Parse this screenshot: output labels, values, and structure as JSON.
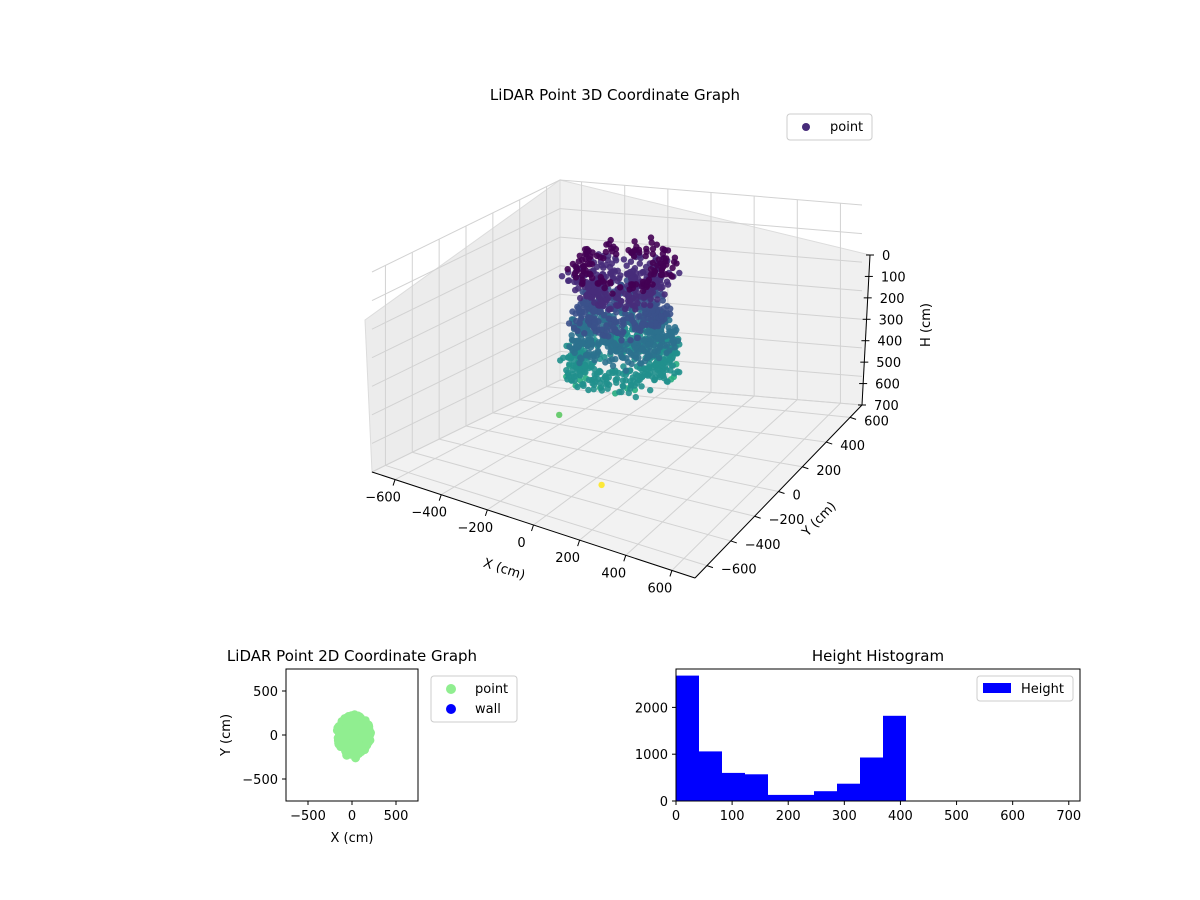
{
  "chart_data": [
    {
      "type": "scatter3d",
      "title": "LiDAR Point 3D Coordinate Graph",
      "xlabel": "X (cm)",
      "ylabel": "Y (cm)",
      "zlabel": "H (cm)",
      "xlim": [
        -700,
        700
      ],
      "ylim": [
        -700,
        700
      ],
      "zlim": [
        0,
        700
      ],
      "z_inverted": true,
      "xticks": [
        "−600",
        "−400",
        "−200",
        "0",
        "200",
        "400",
        "600"
      ],
      "yticks": [
        "−600",
        "−400",
        "−200",
        "0",
        "200",
        "400",
        "600"
      ],
      "zticks": [
        "0",
        "100",
        "200",
        "300",
        "400",
        "500",
        "600",
        "700"
      ],
      "legend": {
        "position": "top-right",
        "entries": [
          {
            "label": "point",
            "color": "#472c7a"
          }
        ]
      },
      "colormap": "viridis",
      "grid": true,
      "cluster": {
        "x_range": [
          -230,
          230
        ],
        "y_range": [
          -250,
          250
        ],
        "h_range": [
          0,
          410
        ]
      },
      "outliers": [
        {
          "x": -150,
          "y": -230,
          "h": 500
        },
        {
          "x": 60,
          "y": -270,
          "h": 690
        }
      ]
    },
    {
      "type": "scatter",
      "title": "LiDAR Point 2D Coordinate Graph",
      "xlabel": "X (cm)",
      "ylabel": "Y (cm)",
      "xlim": [
        -750,
        750
      ],
      "ylim": [
        -750,
        750
      ],
      "xticks": [
        "−500",
        "0",
        "500"
      ],
      "yticks": [
        "−500",
        "0",
        "500"
      ],
      "legend": {
        "position": "outside-right",
        "entries": [
          {
            "label": "point",
            "color": "#90ee90"
          },
          {
            "label": "wall",
            "color": "#0000ff"
          }
        ]
      },
      "series": [
        {
          "name": "point",
          "color": "#90ee90",
          "extent_x": [
            -200,
            240
          ],
          "extent_y": [
            -280,
            250
          ]
        },
        {
          "name": "wall",
          "color": "#0000ff",
          "points": []
        }
      ]
    },
    {
      "type": "bar",
      "title": "Height Histogram",
      "bin_edges": [
        0,
        41,
        82,
        123,
        164,
        205,
        246,
        287,
        328,
        369,
        410
      ],
      "counts": [
        2680,
        1060,
        600,
        570,
        130,
        130,
        210,
        370,
        930,
        1820
      ],
      "xlim": [
        0,
        720
      ],
      "ylim": [
        0,
        2820
      ],
      "xticks": [
        0,
        100,
        200,
        300,
        400,
        500,
        600,
        700
      ],
      "yticks": [
        0,
        1000,
        2000
      ],
      "color": "#0000ff",
      "legend": {
        "position": "top-right",
        "entries": [
          {
            "label": "Height",
            "color": "#0000ff"
          }
        ]
      }
    }
  ]
}
